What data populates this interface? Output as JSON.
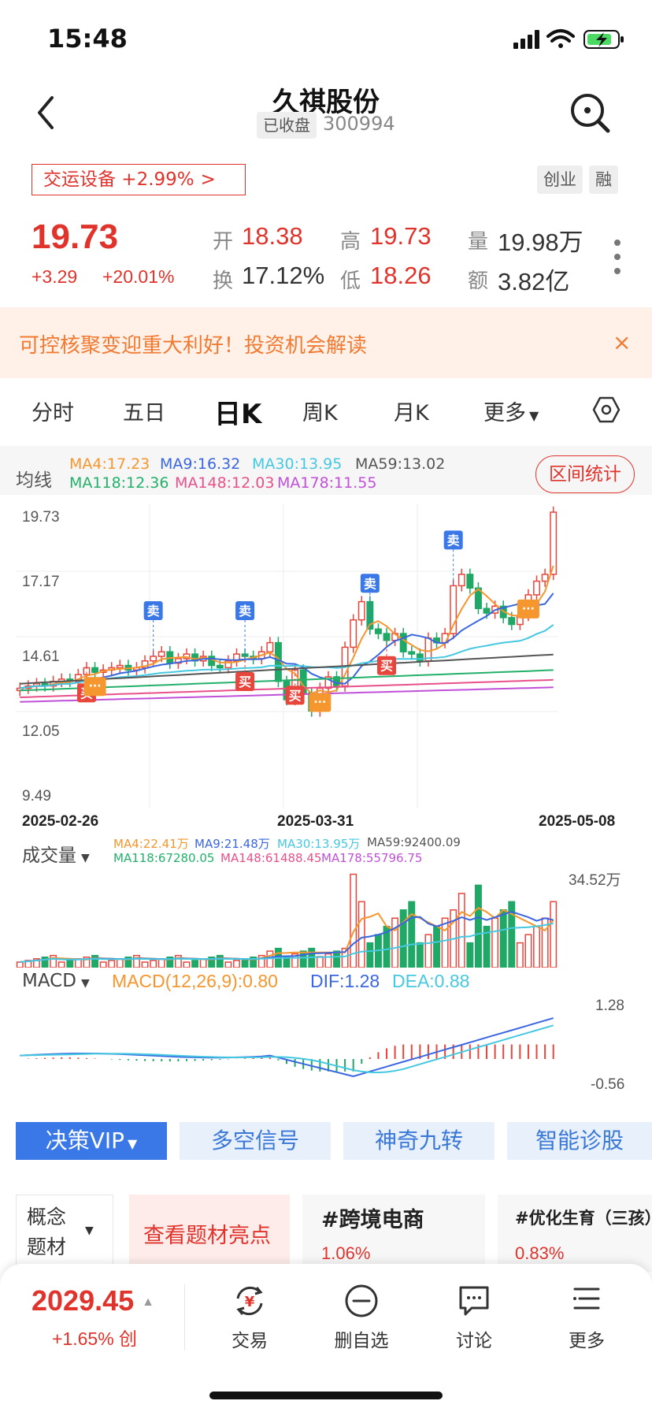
{
  "status_bar": {
    "time": "15:48"
  },
  "header": {
    "title": "久祺股份",
    "status_badge": "已收盘",
    "code": "300994"
  },
  "sector": {
    "label": "交运设备 +2.99%",
    "chevron": ">",
    "tags": [
      "创业",
      "融"
    ]
  },
  "quote": {
    "price": "19.73",
    "change": "+3.29",
    "change_pct": "+20.01%",
    "fields": [
      {
        "label": "开",
        "value": "18.38"
      },
      {
        "label": "高",
        "value": "19.73"
      },
      {
        "label": "量",
        "value": "19.98万"
      },
      {
        "label": "换",
        "value": "17.12%"
      },
      {
        "label": "低",
        "value": "18.26"
      },
      {
        "label": "额",
        "value": "3.82亿"
      }
    ]
  },
  "banner": {
    "text": "可控核聚变迎重大利好！投资机会解读",
    "close": "×"
  },
  "tabs": [
    "分时",
    "五日",
    "日K",
    "周K",
    "月K",
    "更多"
  ],
  "active_tab": "日K",
  "ma_legend": {
    "title": "均线",
    "items": [
      {
        "text": "MA4:17.23",
        "color": "#f5962e"
      },
      {
        "text": "MA9:16.32",
        "color": "#3a66e0"
      },
      {
        "text": "MA30:13.95",
        "color": "#45c8e0"
      },
      {
        "text": "MA59:13.02",
        "color": "#555555"
      },
      {
        "text": "MA118:12.36",
        "color": "#22b06a"
      },
      {
        "text": "MA148:12.03",
        "color": "#e8508a"
      },
      {
        "text": "MA178:11.55",
        "color": "#c050d8"
      }
    ],
    "range_button": "区间统计"
  },
  "kline": {
    "price_axis": [
      "19.73",
      "17.17",
      "14.61",
      "12.05",
      "9.49"
    ],
    "dates": [
      "2025-02-26",
      "2025-03-31",
      "2025-05-08"
    ],
    "signal_buy": "买",
    "signal_sell": "卖",
    "more_marker": "···"
  },
  "volume": {
    "title": "成交量",
    "ma_items": [
      {
        "text": "MA4:22.41万",
        "color": "#f5962e"
      },
      {
        "text": "MA9:21.48万",
        "color": "#3a66e0"
      },
      {
        "text": "MA30:13.95万",
        "color": "#45c8e0"
      },
      {
        "text": "MA59:92400.09",
        "color": "#555555"
      },
      {
        "text": "MA118:67280.05",
        "color": "#22b06a"
      },
      {
        "text": "MA148:61488.45",
        "color": "#e8508a"
      },
      {
        "text": "MA178:55796.75",
        "color": "#c050d8"
      }
    ],
    "max_label": "34.52万"
  },
  "macd": {
    "title": "MACD",
    "items": [
      {
        "text": "MACD(12,26,9):0.80",
        "color": "#f5962e"
      },
      {
        "text": "DIF:1.28",
        "color": "#3a66e0"
      },
      {
        "text": "DEA:0.88",
        "color": "#45c8e0"
      }
    ],
    "axis_top": "1.28",
    "axis_bottom": "-0.56"
  },
  "indicator_buttons": [
    "决策VIP",
    "多空信号",
    "神奇九转",
    "智能诊股"
  ],
  "concept": {
    "selector": [
      "概念",
      "题材"
    ],
    "highlight": "查看题材亮点",
    "topics": [
      {
        "name": "#跨境电商",
        "pct": "1.06%"
      },
      {
        "name": "#优化生育（三孩）",
        "pct": "0.83%"
      }
    ]
  },
  "bottom_bar": {
    "index_value": "2029.45",
    "index_change": "+1.65%",
    "index_tag": "创",
    "nav": [
      "交易",
      "删自选",
      "讨论",
      "更多"
    ]
  }
}
